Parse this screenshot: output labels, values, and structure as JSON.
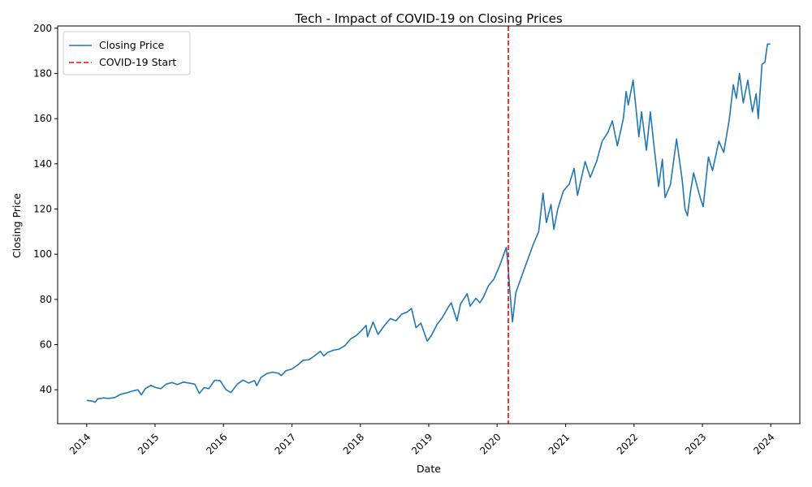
{
  "chart_data": {
    "type": "line",
    "title": "Tech - Impact of COVID-19 on Closing Prices",
    "xlabel": "Date",
    "ylabel": "Closing Price",
    "xlim": [
      "2013-07-30",
      "2024-06-04"
    ],
    "ylim": [
      25,
      201
    ],
    "x_ticks": [
      "2014",
      "2015",
      "2016",
      "2017",
      "2018",
      "2019",
      "2020",
      "2021",
      "2022",
      "2023",
      "2024"
    ],
    "y_ticks": [
      40,
      60,
      80,
      100,
      120,
      140,
      160,
      180,
      200
    ],
    "grid": false,
    "legend_position": "upper-left",
    "series": [
      {
        "name": "Closing Price",
        "color": "#1f77b4",
        "style": "solid",
        "points": [
          [
            "2014-01-01",
            35.3
          ],
          [
            "2014-02-01",
            35.0
          ],
          [
            "2014-02-15",
            34.5
          ],
          [
            "2014-03-01",
            36.0
          ],
          [
            "2014-04-01",
            36.4
          ],
          [
            "2014-05-01",
            36.2
          ],
          [
            "2014-06-01",
            36.6
          ],
          [
            "2014-07-01",
            38.0
          ],
          [
            "2014-08-01",
            38.6
          ],
          [
            "2014-09-01",
            39.4
          ],
          [
            "2014-10-01",
            40.0
          ],
          [
            "2014-10-20",
            37.8
          ],
          [
            "2014-11-10",
            40.5
          ],
          [
            "2014-12-10",
            42.0
          ],
          [
            "2015-01-05",
            41.0
          ],
          [
            "2015-02-01",
            40.5
          ],
          [
            "2015-03-01",
            42.5
          ],
          [
            "2015-04-01",
            43.2
          ],
          [
            "2015-05-01",
            42.3
          ],
          [
            "2015-06-01",
            43.4
          ],
          [
            "2015-07-01",
            43.0
          ],
          [
            "2015-08-01",
            42.5
          ],
          [
            "2015-08-25",
            38.4
          ],
          [
            "2015-09-20",
            41.0
          ],
          [
            "2015-10-15",
            40.5
          ],
          [
            "2015-11-15",
            44.2
          ],
          [
            "2015-12-15",
            44.0
          ],
          [
            "2016-01-15",
            40.0
          ],
          [
            "2016-02-10",
            38.8
          ],
          [
            "2016-03-15",
            42.5
          ],
          [
            "2016-04-15",
            44.3
          ],
          [
            "2016-05-15",
            43.0
          ],
          [
            "2016-06-15",
            44.1
          ],
          [
            "2016-06-27",
            41.8
          ],
          [
            "2016-07-20",
            45.5
          ],
          [
            "2016-08-20",
            47.2
          ],
          [
            "2016-09-20",
            47.8
          ],
          [
            "2016-10-20",
            47.3
          ],
          [
            "2016-11-05",
            46.3
          ],
          [
            "2016-12-01",
            48.5
          ],
          [
            "2017-01-01",
            49.2
          ],
          [
            "2017-02-01",
            51.0
          ],
          [
            "2017-03-01",
            53.0
          ],
          [
            "2017-04-01",
            53.3
          ],
          [
            "2017-05-01",
            55.0
          ],
          [
            "2017-06-01",
            57.0
          ],
          [
            "2017-06-20",
            55.0
          ],
          [
            "2017-07-10",
            56.5
          ],
          [
            "2017-08-10",
            57.5
          ],
          [
            "2017-09-10",
            58.0
          ],
          [
            "2017-10-10",
            59.5
          ],
          [
            "2017-11-10",
            62.5
          ],
          [
            "2017-12-10",
            64.0
          ],
          [
            "2018-01-10",
            66.5
          ],
          [
            "2018-02-01",
            68.5
          ],
          [
            "2018-02-08",
            63.5
          ],
          [
            "2018-03-10",
            70.0
          ],
          [
            "2018-04-05",
            64.5
          ],
          [
            "2018-05-10",
            68.5
          ],
          [
            "2018-06-10",
            71.5
          ],
          [
            "2018-07-10",
            70.5
          ],
          [
            "2018-08-10",
            73.5
          ],
          [
            "2018-09-10",
            74.5
          ],
          [
            "2018-10-01",
            76.0
          ],
          [
            "2018-10-25",
            67.5
          ],
          [
            "2018-11-20",
            69.5
          ],
          [
            "2018-12-24",
            61.5
          ],
          [
            "2019-01-15",
            64.0
          ],
          [
            "2019-02-15",
            69.0
          ],
          [
            "2019-03-15",
            72.0
          ],
          [
            "2019-04-15",
            76.5
          ],
          [
            "2019-05-01",
            78.5
          ],
          [
            "2019-06-01",
            70.5
          ],
          [
            "2019-06-20",
            78.0
          ],
          [
            "2019-07-25",
            82.5
          ],
          [
            "2019-08-10",
            77.0
          ],
          [
            "2019-09-10",
            80.5
          ],
          [
            "2019-10-01",
            78.5
          ],
          [
            "2019-10-20",
            81.0
          ],
          [
            "2019-11-15",
            86.0
          ],
          [
            "2019-12-15",
            89.0
          ],
          [
            "2020-01-15",
            95.0
          ],
          [
            "2020-02-19",
            103.0
          ],
          [
            "2020-02-28",
            95.0
          ],
          [
            "2020-03-10",
            83.0
          ],
          [
            "2020-03-23",
            70.0
          ],
          [
            "2020-04-10",
            83.0
          ],
          [
            "2020-05-10",
            90.0
          ],
          [
            "2020-06-10",
            97.0
          ],
          [
            "2020-07-10",
            104.0
          ],
          [
            "2020-08-10",
            110.0
          ],
          [
            "2020-09-02",
            127.0
          ],
          [
            "2020-09-20",
            114.0
          ],
          [
            "2020-10-15",
            122.0
          ],
          [
            "2020-10-30",
            111.0
          ],
          [
            "2020-11-20",
            120.0
          ],
          [
            "2020-12-20",
            128.0
          ],
          [
            "2021-01-20",
            131.0
          ],
          [
            "2021-02-15",
            138.0
          ],
          [
            "2021-03-05",
            126.0
          ],
          [
            "2021-04-15",
            141.0
          ],
          [
            "2021-05-12",
            134.0
          ],
          [
            "2021-06-15",
            141.0
          ],
          [
            "2021-07-15",
            150.0
          ],
          [
            "2021-08-15",
            154.0
          ],
          [
            "2021-09-07",
            159.0
          ],
          [
            "2021-10-04",
            148.0
          ],
          [
            "2021-11-05",
            160.0
          ],
          [
            "2021-11-20",
            172.0
          ],
          [
            "2021-12-01",
            166.0
          ],
          [
            "2021-12-27",
            177.0
          ],
          [
            "2022-01-27",
            152.0
          ],
          [
            "2022-02-10",
            163.0
          ],
          [
            "2022-03-08",
            146.0
          ],
          [
            "2022-03-29",
            163.0
          ],
          [
            "2022-04-15",
            150.0
          ],
          [
            "2022-05-12",
            130.0
          ],
          [
            "2022-06-01",
            142.0
          ],
          [
            "2022-06-16",
            125.0
          ],
          [
            "2022-07-15",
            131.0
          ],
          [
            "2022-08-16",
            151.0
          ],
          [
            "2022-09-15",
            133.0
          ],
          [
            "2022-09-30",
            120.0
          ],
          [
            "2022-10-13",
            117.0
          ],
          [
            "2022-10-30",
            128.0
          ],
          [
            "2022-11-15",
            136.0
          ],
          [
            "2022-12-20",
            125.0
          ],
          [
            "2023-01-05",
            121.0
          ],
          [
            "2023-02-02",
            143.0
          ],
          [
            "2023-02-24",
            137.0
          ],
          [
            "2023-03-30",
            150.0
          ],
          [
            "2023-04-25",
            145.0
          ],
          [
            "2023-05-25",
            160.0
          ],
          [
            "2023-06-15",
            175.0
          ],
          [
            "2023-07-01",
            169.0
          ],
          [
            "2023-07-18",
            180.0
          ],
          [
            "2023-08-07",
            167.0
          ],
          [
            "2023-08-31",
            177.0
          ],
          [
            "2023-09-25",
            163.0
          ],
          [
            "2023-10-15",
            171.0
          ],
          [
            "2023-10-26",
            160.0
          ],
          [
            "2023-11-15",
            184.0
          ],
          [
            "2023-12-01",
            185.0
          ],
          [
            "2023-12-14",
            193.0
          ],
          [
            "2023-12-29",
            193.0
          ]
        ]
      },
      {
        "name": "COVID-19 Start",
        "color": "#ff0000",
        "style": "dashed",
        "x_value": "2020-03-01"
      }
    ]
  }
}
